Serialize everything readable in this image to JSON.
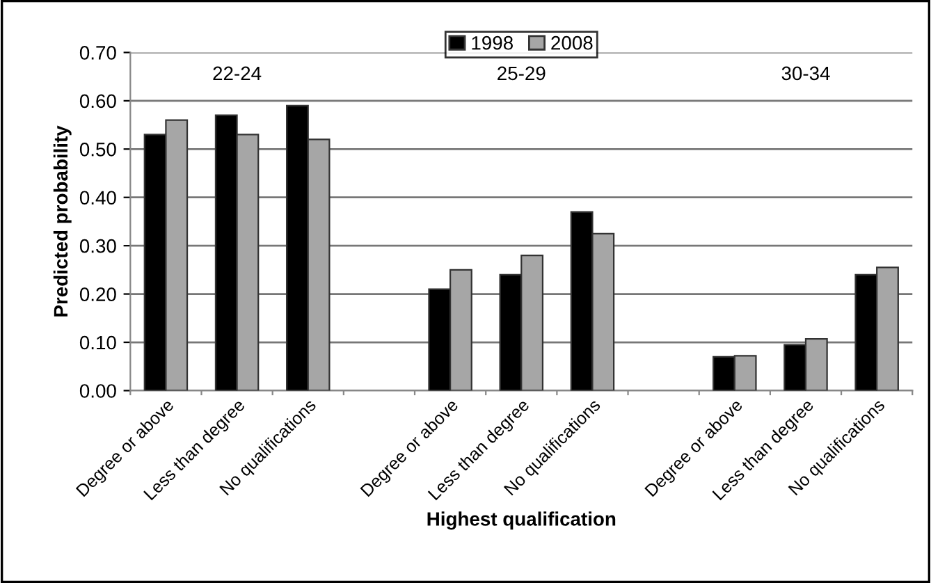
{
  "chart_data": {
    "type": "bar",
    "xlabel": "Highest qualification",
    "ylabel": "Predicted probability",
    "categories": [
      "Degree or above",
      "Less than degree",
      "No qualifications",
      null,
      "Degree or above",
      "Less than degree",
      "No qualifications",
      null,
      "Degree or above",
      "Less than degree",
      "No qualifications"
    ],
    "series": [
      {
        "name": "1998",
        "color": "#000000",
        "values": [
          0.53,
          0.57,
          0.59,
          null,
          0.21,
          0.24,
          0.37,
          null,
          0.07,
          0.095,
          0.24
        ]
      },
      {
        "name": "2008",
        "color": "#a6a6a6",
        "values": [
          0.56,
          0.53,
          0.52,
          null,
          0.25,
          0.28,
          0.325,
          null,
          0.072,
          0.107,
          0.255
        ]
      }
    ],
    "annotations": [
      "22-24",
      "25-29",
      "30-34"
    ],
    "ylim": [
      0,
      0.7
    ],
    "yticks": [
      {
        "value": 0,
        "label": "0.00"
      },
      {
        "value": 0.1,
        "label": "0.10"
      },
      {
        "value": 0.2,
        "label": "0.20"
      },
      {
        "value": 0.3,
        "label": "0.30"
      },
      {
        "value": 0.4,
        "label": "0.40"
      },
      {
        "value": 0.5,
        "label": "0.50"
      },
      {
        "value": 0.6,
        "label": "0.60"
      },
      {
        "value": 0.7,
        "label": "0.70"
      }
    ],
    "grid": "y",
    "legend": "top"
  }
}
